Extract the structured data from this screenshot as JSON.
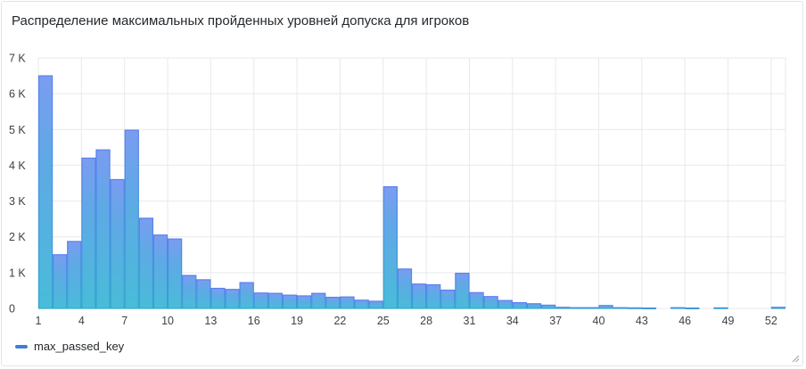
{
  "panel": {
    "title": "Распределение максимальных пройденных уровней допуска для игроков"
  },
  "chart_data": {
    "type": "bar",
    "title": "Распределение максимальных пройденных уровней допуска для игроков",
    "xlabel": "",
    "ylabel": "",
    "x_start": 1,
    "bin_width": 1,
    "x_ticks": [
      1,
      4,
      7,
      10,
      13,
      16,
      19,
      22,
      25,
      28,
      31,
      34,
      37,
      40,
      43,
      46,
      49,
      52
    ],
    "x_tick_labels": [
      "1",
      "4",
      "7",
      "10",
      "13",
      "16",
      "19",
      "22",
      "25",
      "28",
      "31",
      "34",
      "37",
      "40",
      "43",
      "46",
      "49",
      "52"
    ],
    "y_ticks": [
      0,
      1000,
      2000,
      3000,
      4000,
      5000,
      6000,
      7000
    ],
    "y_tick_labels": [
      "0",
      "1 K",
      "2 K",
      "3 K",
      "4 K",
      "5 K",
      "6 K",
      "7 K"
    ],
    "ylim": [
      0,
      7000
    ],
    "grid": true,
    "legend_position": "bottom-left",
    "series": [
      {
        "name": "max_passed_key",
        "color": "#4a90d9",
        "values": [
          6500,
          1500,
          1870,
          4200,
          4430,
          3600,
          4980,
          2520,
          2050,
          1940,
          920,
          800,
          560,
          530,
          720,
          430,
          420,
          370,
          350,
          420,
          310,
          320,
          230,
          200,
          3400,
          1100,
          680,
          660,
          510,
          980,
          440,
          330,
          220,
          160,
          130,
          90,
          30,
          20,
          20,
          80,
          20,
          15,
          10,
          0,
          20,
          10,
          0,
          15,
          0,
          0,
          0,
          30
        ]
      }
    ]
  }
}
